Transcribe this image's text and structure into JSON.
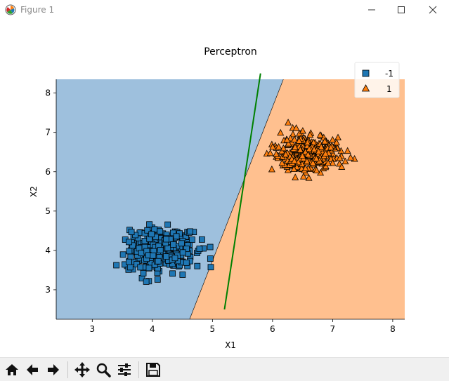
{
  "window": {
    "title": "Figure 1"
  },
  "icons": {
    "app": "matplotlib-icon",
    "minimize": "minimize-icon",
    "maximize": "maximize-icon",
    "close": "close-icon",
    "home": "home-icon",
    "back": "arrow-left-icon",
    "forward": "arrow-right-icon",
    "pan": "move-icon",
    "zoom": "magnifier-icon",
    "configure": "sliders-icon",
    "save": "floppy-disk-icon"
  },
  "chart_data": {
    "type": "scatter",
    "title": "Perceptron",
    "xlabel": "X1",
    "ylabel": "X2",
    "xlim": [
      2.4,
      8.2
    ],
    "ylim": [
      2.25,
      8.35
    ],
    "xticks": [
      3,
      4,
      5,
      6,
      7,
      8
    ],
    "yticks": [
      3,
      4,
      5,
      6,
      7,
      8
    ],
    "grid": false,
    "legend_position": "top-right",
    "legend": [
      {
        "label": "-1",
        "marker": "square",
        "color": "#1f77b4"
      },
      {
        "label": "1",
        "marker": "triangle",
        "color": "#ff7f0e"
      }
    ],
    "region_colors": {
      "-1": "#9ec0dd",
      "1": "#ffc08f"
    },
    "decision_boundary": [
      {
        "x": 4.62,
        "y": 2.25
      },
      {
        "x": 6.18,
        "y": 8.35
      }
    ],
    "perceptron_line": {
      "color": "#008000",
      "points": [
        {
          "x": 5.2,
          "y": 2.5
        },
        {
          "x": 5.8,
          "y": 8.5
        }
      ]
    },
    "series": [
      {
        "name": "-1",
        "marker": "square",
        "color": "#1f77b4",
        "center": [
          4.1,
          4.0
        ],
        "std": [
          0.28,
          0.28
        ],
        "count": 300,
        "seed": 7
      },
      {
        "name": "1",
        "marker": "triangle",
        "color": "#ff7f0e",
        "center": [
          6.6,
          6.45
        ],
        "std": [
          0.28,
          0.25
        ],
        "count": 300,
        "seed": 19
      }
    ]
  }
}
